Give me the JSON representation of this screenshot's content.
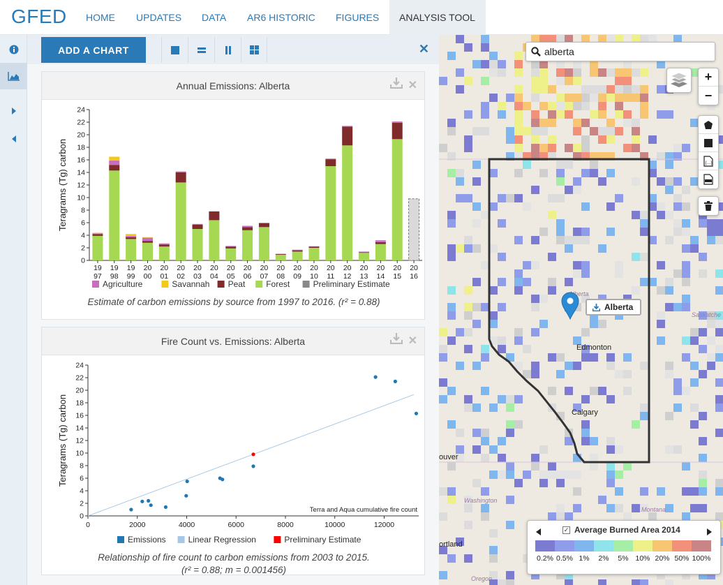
{
  "brand": "GFED",
  "nav": [
    {
      "label": "HOME"
    },
    {
      "label": "UPDATES"
    },
    {
      "label": "DATA"
    },
    {
      "label": "AR6 HISTORIC"
    },
    {
      "label": "FIGURES"
    },
    {
      "label": "ANALYSIS TOOL",
      "active": true
    }
  ],
  "rail": [
    "info-icon",
    "chart-icon",
    "expand-right-icon",
    "collapse-left-icon"
  ],
  "toolbar": {
    "add_chart": "ADD A CHART",
    "layouts": [
      "single-layout-icon",
      "rows-layout-icon",
      "columns-layout-icon",
      "grid-layout-icon"
    ],
    "close_all": "✕"
  },
  "chart1": {
    "title": "Annual Emissions: Alberta",
    "caption": "Estimate of carbon emissions by source from 1997 to 2016. (r² = 0.88)"
  },
  "chart2": {
    "title": "Fire Count vs. Emissions: Alberta",
    "caption_line1": "Relationship of fire count to carbon emissions from 2003 to 2015.",
    "caption_line2": "(r² = 0.88; m = 0.001456)"
  },
  "chart_data": [
    {
      "type": "bar",
      "title": "Annual Emissions: Alberta",
      "ylabel": "Teragrams (Tg) carbon",
      "ylim": [
        0,
        24
      ],
      "yticks": [
        0,
        2,
        4,
        6,
        8,
        10,
        12,
        14,
        16,
        18,
        20,
        22,
        24
      ],
      "categories": [
        "1997",
        "1998",
        "1999",
        "2000",
        "2001",
        "2002",
        "2003",
        "2004",
        "2005",
        "2006",
        "2007",
        "2008",
        "2009",
        "2010",
        "2011",
        "2012",
        "2013",
        "2014",
        "2015",
        "2016"
      ],
      "category_labels": [
        [
          "19",
          "97"
        ],
        [
          "19",
          "98"
        ],
        [
          "19",
          "99"
        ],
        [
          "20",
          "00"
        ],
        [
          "20",
          "01"
        ],
        [
          "20",
          "02"
        ],
        [
          "20",
          "03"
        ],
        [
          "20",
          "04"
        ],
        [
          "20",
          "05"
        ],
        [
          "20",
          "06"
        ],
        [
          "20",
          "07"
        ],
        [
          "20",
          "08"
        ],
        [
          "20",
          "09"
        ],
        [
          "20",
          "10"
        ],
        [
          "20",
          "11"
        ],
        [
          "20",
          "12"
        ],
        [
          "20",
          "13"
        ],
        [
          "20",
          "14"
        ],
        [
          "20",
          "15"
        ],
        [
          "20",
          "16"
        ]
      ],
      "series": [
        {
          "name": "Forest",
          "color": "#a6d854",
          "values": [
            3.9,
            14.3,
            3.4,
            2.8,
            2.2,
            12.4,
            5.0,
            6.4,
            1.9,
            4.8,
            5.3,
            0.9,
            1.4,
            2.0,
            15.0,
            18.3,
            1.2,
            2.6,
            19.3,
            0
          ]
        },
        {
          "name": "Peat",
          "color": "#7f2b2b",
          "values": [
            0.3,
            0.9,
            0.3,
            0.3,
            0.3,
            1.6,
            0.7,
            1.4,
            0.3,
            0.5,
            0.6,
            0.1,
            0.2,
            0.2,
            1.1,
            3.0,
            0.1,
            0.3,
            2.6,
            0
          ]
        },
        {
          "name": "Agriculture",
          "color": "#c86ec0",
          "values": [
            0.1,
            0.7,
            0.2,
            0.5,
            0.2,
            0.1,
            0.1,
            0,
            0.1,
            0.2,
            0.1,
            0.05,
            0.1,
            0.05,
            0.1,
            0.1,
            0.1,
            0.3,
            0.2,
            0
          ]
        },
        {
          "name": "Savannah",
          "color": "#f2c919",
          "values": [
            0.1,
            0.6,
            0.3,
            0.1,
            0,
            0.1,
            0,
            0,
            0,
            0,
            0,
            0,
            0,
            0,
            0,
            0,
            0,
            0,
            0,
            0
          ]
        },
        {
          "name": "Preliminary Estimate",
          "color": "#888888",
          "values": [
            0,
            0,
            0,
            0,
            0,
            0,
            0,
            0,
            0,
            0,
            0,
            0,
            0,
            0,
            0,
            0,
            0,
            0,
            0,
            9.8
          ]
        }
      ],
      "legend": [
        "Agriculture",
        "Savannah",
        "Peat",
        "Forest",
        "Preliminary Estimate"
      ],
      "legend_colors": [
        "#c86ec0",
        "#f2c919",
        "#7f2b2b",
        "#a6d854",
        "#888888"
      ]
    },
    {
      "type": "scatter",
      "title": "Fire Count vs. Emissions: Alberta",
      "ylabel": "Teragrams (Tg) carbon",
      "xlabel": "Terra and Aqua cumulative fire count",
      "xlim": [
        0,
        13400
      ],
      "ylim": [
        0,
        24
      ],
      "xticks": [
        0,
        2000,
        4000,
        6000,
        8000,
        10000,
        12000
      ],
      "yticks": [
        0,
        2,
        4,
        6,
        8,
        10,
        12,
        14,
        16,
        18,
        20,
        22,
        24
      ],
      "series": [
        {
          "name": "Emissions",
          "color": "#1f78b4",
          "points": [
            [
              1750,
              1.0
            ],
            [
              2200,
              2.3
            ],
            [
              2450,
              2.4
            ],
            [
              2550,
              1.7
            ],
            [
              3150,
              1.4
            ],
            [
              3980,
              3.2
            ],
            [
              4020,
              5.5
            ],
            [
              5350,
              6.0
            ],
            [
              5450,
              5.8
            ],
            [
              6700,
              7.9
            ],
            [
              11650,
              22.1
            ],
            [
              12450,
              21.4
            ],
            [
              13300,
              16.3
            ]
          ]
        },
        {
          "name": "Linear Regression",
          "color": "#a6c8e8",
          "line": [
            [
              0,
              0
            ],
            [
              13200,
              19.3
            ]
          ]
        },
        {
          "name": "Preliminary Estimate",
          "color": "#ff0000",
          "points": [
            [
              6700,
              9.8
            ]
          ]
        }
      ],
      "legend": [
        "Emissions",
        "Linear Regression",
        "Preliminary Estimate"
      ],
      "legend_colors": [
        "#1f78b4",
        "#a6c8e8",
        "#ff0000"
      ]
    }
  ],
  "map": {
    "search_value": "alberta",
    "zoom_in": "+",
    "zoom_out": "−",
    "marker_label": "Alberta",
    "labels": [
      "Edmonton",
      "Calgary",
      "Alberta",
      "Saskatche",
      "ouver",
      "Washington",
      "Montana",
      "ortland",
      "Oregon"
    ],
    "legend_title": "Average Burned Area 2014",
    "legend_values": [
      "0.2%",
      "0.5%",
      "1%",
      "2%",
      "5%",
      "10%",
      "20%",
      "50%",
      "100%"
    ],
    "legend_colors": [
      "#7b7bd1",
      "#8f9cea",
      "#7fb6ee",
      "#8fe3ea",
      "#a6eea6",
      "#eef08a",
      "#f8c673",
      "#f3907a",
      "#c98585"
    ]
  }
}
